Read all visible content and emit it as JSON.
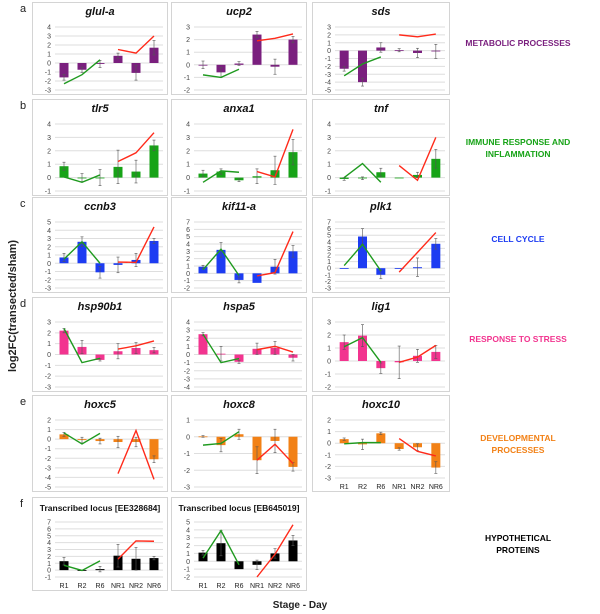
{
  "y_axis_label": "log2FC(transected/sham)",
  "x_axis_label": "Stage - Day",
  "x_categories": [
    "R1",
    "R2",
    "R6",
    "NR1",
    "NR2",
    "NR6"
  ],
  "line_colors": {
    "regenerative": "#1f9a1f",
    "non_regenerative": "#ff2a1a"
  },
  "rows": [
    {
      "letter": "a",
      "category": "METABOLIC PROCESSES",
      "color": "#7a1f7e"
    },
    {
      "letter": "b",
      "category": "IMMUNE RESPONSE AND INFLAMMATION",
      "color": "#17a317"
    },
    {
      "letter": "c",
      "category": "CELL CYCLE",
      "color": "#1d3cf2"
    },
    {
      "letter": "d",
      "category": "RESPONSE TO STRESS",
      "color": "#f2348f"
    },
    {
      "letter": "e",
      "category": "DEVELOPMENTAL PROCESSES",
      "color": "#f28116"
    },
    {
      "letter": "f",
      "category": "HYPOTHETICAL PROTEINS",
      "color": "#000000"
    }
  ],
  "chart_data": [
    {
      "type": "bar",
      "title": "glul-a",
      "row": 0,
      "ylim": [
        -3,
        4
      ],
      "values": [
        -1.6,
        -0.75,
        -0.1,
        0.8,
        -1.1,
        1.7
      ],
      "errors": [
        0.3,
        0.3,
        0.4,
        0.3,
        0.8,
        0.8
      ],
      "green_line": [
        -2.3,
        -1.3,
        0.35
      ],
      "red_line": [
        1.5,
        1.1,
        3.0
      ]
    },
    {
      "type": "bar",
      "title": "ucp2",
      "row": 0,
      "ylim": [
        -2,
        3
      ],
      "values": [
        0,
        -0.6,
        0.1,
        2.4,
        -0.15,
        2.0
      ],
      "errors": [
        0.3,
        0.4,
        0.15,
        0.25,
        0.6,
        0.25
      ],
      "green_line": [
        -0.8,
        -1.0,
        -0.35
      ],
      "red_line": [
        1.9,
        2.1,
        2.45
      ]
    },
    {
      "type": "bar",
      "title": "sds",
      "row": 0,
      "ylim": [
        -5,
        3
      ],
      "values": [
        -2.3,
        -4.0,
        0.4,
        0.05,
        -0.3,
        -0.1
      ],
      "errors": [
        0.3,
        0.5,
        0.6,
        0.2,
        0.6,
        0.9
      ],
      "green_line": [
        -3.2,
        -1.7,
        -0.8
      ],
      "red_line": [
        2.0,
        1.75,
        2.1
      ]
    },
    {
      "type": "bar",
      "title": "tlr5",
      "row": 1,
      "ylim": [
        -1,
        4
      ],
      "values": [
        0.85,
        0,
        0,
        0.8,
        0.45,
        2.4
      ],
      "errors": [
        0.3,
        0.3,
        0.6,
        1.25,
        0.85,
        0.4
      ],
      "green_line": [
        0.05,
        -0.35,
        0.2
      ],
      "red_line": [
        1.2,
        1.85,
        3.35
      ]
    },
    {
      "type": "bar",
      "title": "anxa1",
      "row": 1,
      "ylim": [
        -1,
        4
      ],
      "values": [
        0.3,
        0.45,
        -0.2,
        0.1,
        0.55,
        1.9
      ],
      "errors": [
        0.25,
        0.2,
        0.1,
        0.55,
        1.05,
        0.95
      ],
      "green_line": [
        -0.35,
        0.5,
        0.4
      ],
      "red_line": [
        0.45,
        0.05,
        3.6
      ]
    },
    {
      "type": "bar",
      "title": "tnf",
      "row": 1,
      "ylim": [
        -1,
        4
      ],
      "values": [
        -0.1,
        -0.05,
        0.4,
        0,
        0.2,
        1.4
      ],
      "errors": [
        0.1,
        0.1,
        0.3,
        0,
        0.2,
        0.7
      ],
      "green_line": [
        0.0,
        1.05,
        -0.35
      ],
      "red_line": [
        0.9,
        -0.2,
        3.0
      ]
    },
    {
      "type": "bar",
      "title": "ccnb3",
      "row": 2,
      "ylim": [
        -3,
        5
      ],
      "values": [
        0.7,
        2.6,
        -1.1,
        -0.2,
        0.4,
        2.7
      ],
      "errors": [
        0.5,
        0.6,
        0.7,
        0.95,
        0.8,
        0.3
      ],
      "green_line": [
        0.5,
        2.6,
        0
      ],
      "red_line": [
        0.15,
        0.1,
        4.4
      ]
    },
    {
      "type": "bar",
      "title": "kif11-a",
      "row": 2,
      "ylim": [
        -2,
        7
      ],
      "values": [
        0.9,
        3.2,
        -0.9,
        -1.3,
        0.9,
        3.0
      ],
      "errors": [
        0.2,
        1.0,
        0.4,
        0,
        1.0,
        0.8
      ],
      "green_line": [
        0.5,
        3.3,
        -0.3
      ],
      "red_line": [
        -0.35,
        0.1,
        5.7
      ]
    },
    {
      "type": "bar",
      "title": "plk1",
      "row": 2,
      "ylim": [
        -3,
        7
      ],
      "values": [
        0,
        4.8,
        -1.0,
        0,
        0.15,
        3.7
      ],
      "errors": [
        0,
        1.2,
        0.6,
        0,
        1.4,
        0.8
      ],
      "green_line": [
        0.4,
        3.6,
        -0.4
      ],
      "red_line": [
        -0.6,
        2.4,
        5.4
      ]
    },
    {
      "type": "bar",
      "title": "hsp90b1",
      "row": 3,
      "ylim": [
        -3,
        3
      ],
      "values": [
        2.2,
        0.7,
        -0.5,
        0.3,
        0.6,
        0.4
      ],
      "errors": [
        0.2,
        0.6,
        0.1,
        0.7,
        0.5,
        0.25
      ],
      "green_line": [
        2.4,
        -0.75,
        -0.35
      ],
      "red_line": [
        0.5,
        0.8,
        1.25
      ]
    },
    {
      "type": "bar",
      "title": "hspa5",
      "row": 3,
      "ylim": [
        -4,
        4
      ],
      "values": [
        2.5,
        0.1,
        -0.9,
        0.7,
        0.8,
        -0.4
      ],
      "errors": [
        0.2,
        0.9,
        0.2,
        0.7,
        0.8,
        0.4
      ],
      "green_line": [
        2.5,
        -1.0,
        -0.5
      ],
      "red_line": [
        0.6,
        1.0,
        0.3
      ]
    },
    {
      "type": "bar",
      "title": "lig1",
      "row": 3,
      "ylim": [
        -2,
        3
      ],
      "values": [
        1.45,
        1.95,
        -0.55,
        -0.1,
        0.4,
        0.7
      ],
      "errors": [
        0.55,
        0.85,
        0.4,
        1.25,
        0.5,
        0.5
      ],
      "green_line": [
        1.1,
        1.8,
        -0.1
      ],
      "red_line": [
        -0.1,
        0.3,
        1.2
      ]
    },
    {
      "type": "bar",
      "title": "hoxc5",
      "row": 4,
      "ylim": [
        -5,
        2
      ],
      "values": [
        0.5,
        -0.1,
        -0.2,
        -0.3,
        -0.3,
        -2.1
      ],
      "errors": [
        0.2,
        0.3,
        0.3,
        0.6,
        0.5,
        0.35
      ],
      "green_line": [
        0.65,
        -0.5,
        0.6
      ],
      "red_line": [
        -3.6,
        0.9,
        -4.2
      ]
    },
    {
      "type": "bar",
      "title": "hoxc8",
      "row": 4,
      "ylim": [
        -3,
        1
      ],
      "values": [
        0.02,
        -0.5,
        0.15,
        -1.4,
        -0.25,
        -1.8
      ],
      "errors": [
        0.05,
        0.4,
        0.3,
        0.8,
        0.7,
        0.25
      ],
      "green_line": [
        -0.5,
        -0.4,
        0.3
      ],
      "red_line": [
        -1.4,
        -0.45,
        -1.6
      ]
    },
    {
      "type": "bar",
      "title": "hoxc10",
      "row": 4,
      "ylim": [
        -3,
        2
      ],
      "show_x_labels": true,
      "values": [
        0.35,
        -0.1,
        0.85,
        -0.5,
        -0.35,
        -2.1
      ],
      "errors": [
        0.1,
        0.45,
        0.1,
        0.1,
        0.3,
        0.5
      ],
      "green_line": [
        -0.05,
        0.05,
        0.05
      ],
      "red_line": [
        0.4,
        -0.7,
        -1.1
      ]
    },
    {
      "type": "bar",
      "title": "Transcribed locus [EE328684]",
      "row": 5,
      "ylim": [
        -1,
        7
      ],
      "show_x_labels": true,
      "values": [
        1.3,
        0,
        0.15,
        2.1,
        1.65,
        1.75
      ],
      "errors": [
        0.55,
        0,
        0.4,
        1.65,
        1.65,
        0.25
      ],
      "green_line": [
        0.7,
        -0.05,
        1.35
      ],
      "red_line": [
        1.6,
        4.25,
        4.2
      ]
    },
    {
      "type": "bar",
      "title": "Transcribed locus [EB645019]",
      "row": 5,
      "ylim": [
        -2,
        5
      ],
      "show_x_labels": true,
      "values": [
        1.1,
        2.3,
        -1.0,
        -0.45,
        1.0,
        2.65
      ],
      "errors": [
        0.3,
        1.6,
        0,
        0.6,
        0.6,
        0.65
      ],
      "green_line": [
        0.4,
        3.9,
        -0.45
      ],
      "red_line": [
        -2.0,
        0.9,
        4.65
      ]
    }
  ]
}
